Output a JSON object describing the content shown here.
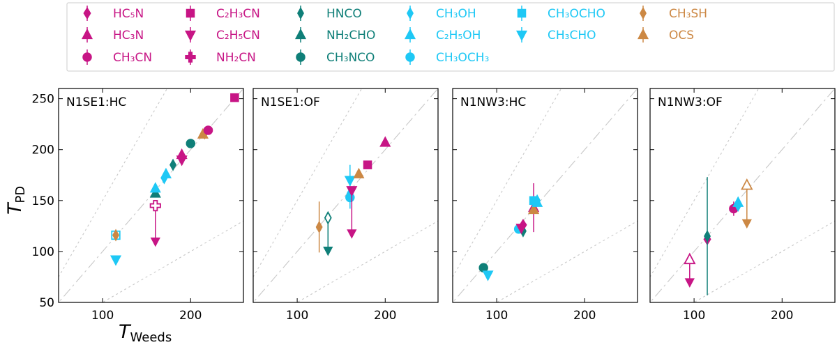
{
  "colors": {
    "HC": "#c71585",
    "N": "#0f7f78",
    "O": "#1ec8f5",
    "S": "#cc8844",
    "reference_line": "#c8c8c8"
  },
  "legend": [
    {
      "key": "HC5N",
      "label": "HC₅N",
      "group": "HC",
      "marker": "diamond"
    },
    {
      "key": "HC3N",
      "label": "HC₃N",
      "group": "HC",
      "marker": "triangle-up"
    },
    {
      "key": "CH3CN",
      "label": "CH₃CN",
      "group": "HC",
      "marker": "circle"
    },
    {
      "key": "C2H3CN",
      "label": "C₂H₃CN",
      "group": "HC",
      "marker": "square"
    },
    {
      "key": "C2H5CN",
      "label": "C₂H₅CN",
      "group": "HC",
      "marker": "triangle-down"
    },
    {
      "key": "NH2CN",
      "label": "NH₂CN",
      "group": "HC",
      "marker": "plus"
    },
    {
      "key": "HNCO",
      "label": "HNCO",
      "group": "N",
      "marker": "thin-diamond"
    },
    {
      "key": "NH2CHO",
      "label": "NH₂CHO",
      "group": "N",
      "marker": "triangle-up"
    },
    {
      "key": "CH3NCO",
      "label": "CH₃NCO",
      "group": "N",
      "marker": "circle"
    },
    {
      "key": "CH3OH",
      "label": "CH₃OH",
      "group": "O",
      "marker": "thin-diamond"
    },
    {
      "key": "C2H5OH",
      "label": "C₂H₅OH",
      "group": "O",
      "marker": "triangle-up"
    },
    {
      "key": "CH3OCH3",
      "label": "CH₃OCH₃",
      "group": "O",
      "marker": "circle"
    },
    {
      "key": "CH3OCHO",
      "label": "CH₃OCHO",
      "group": "O",
      "marker": "square"
    },
    {
      "key": "CH3CHO",
      "label": "CH₃CHO",
      "group": "O",
      "marker": "triangle-down"
    },
    {
      "key": "CH3SH",
      "label": "CH₃SH",
      "group": "S",
      "marker": "thin-diamond"
    },
    {
      "key": "OCS",
      "label": "OCS",
      "group": "S",
      "marker": "triangle-up"
    }
  ],
  "chart_data": {
    "type": "scatter",
    "xlabel_main": "T",
    "xlabel_sub": "Weeds",
    "ylabel_main": "T",
    "ylabel_sub": "PD",
    "xlim": [
      50,
      260
    ],
    "ylim": [
      50,
      260
    ],
    "xticks": [
      100,
      200
    ],
    "yticks": [
      50,
      100,
      150,
      200,
      250
    ],
    "reference_lines": [
      {
        "slope": 1.0,
        "style": "dashdot"
      },
      {
        "slope": 0.5,
        "style": "dotted"
      },
      {
        "slope": 1.5,
        "style": "dotted"
      }
    ],
    "panels": [
      {
        "title": "N1SE1:HC",
        "points": [
          {
            "mol": "CH3OCHO",
            "x": 115,
            "y": 116,
            "filled": false
          },
          {
            "mol": "CH3SH",
            "x": 115,
            "y": 116,
            "filled": true
          },
          {
            "mol": "CH3CHO",
            "x": 115,
            "y": 92,
            "filled": true
          },
          {
            "mol": "NH2CN",
            "x": 160,
            "y": 145,
            "filled": false,
            "upper_limit_to": 110
          },
          {
            "mol": "NH2CHO",
            "x": 160,
            "y": 157,
            "filled": true
          },
          {
            "mol": "C2H5OH",
            "x": 160,
            "y": 162,
            "filled": true
          },
          {
            "mol": "CH3OH",
            "x": 170,
            "y": 172,
            "filled": true
          },
          {
            "mol": "C2H5OH",
            "x": 172,
            "y": 176,
            "filled": true
          },
          {
            "mol": "HNCO",
            "x": 180,
            "y": 185,
            "filled": true
          },
          {
            "mol": "C2H5CN",
            "x": 190,
            "y": 190,
            "filled": true
          },
          {
            "mol": "HC3N",
            "x": 190,
            "y": 195,
            "filled": true
          },
          {
            "mol": "CH3NCO",
            "x": 200,
            "y": 206,
            "filled": true
          },
          {
            "mol": "OCS",
            "x": 214,
            "y": 215,
            "filled": true
          },
          {
            "mol": "CH3SH",
            "x": 216,
            "y": 216,
            "filled": true
          },
          {
            "mol": "CH3CN",
            "x": 220,
            "y": 219,
            "filled": true
          },
          {
            "mol": "C2H3CN",
            "x": 250,
            "y": 251,
            "filled": true
          }
        ]
      },
      {
        "title": "N1SE1:OF",
        "points": [
          {
            "mol": "CH3SH",
            "x": 125,
            "y": 124,
            "filled": true,
            "err": 25
          },
          {
            "mol": "HNCO",
            "x": 135,
            "y": 133,
            "filled": false,
            "upper_limit_to": 101
          },
          {
            "mol": "CH3OH",
            "x": 160,
            "y": 157,
            "filled": true,
            "err": 15
          },
          {
            "mol": "CH3OCH3",
            "x": 160,
            "y": 153,
            "filled": true
          },
          {
            "mol": "CH3CHO",
            "x": 160,
            "y": 170,
            "filled": true,
            "err": 15
          },
          {
            "mol": "C2H5CN",
            "x": 162,
            "y": 160,
            "filled": true,
            "upper_limit_to": 118
          },
          {
            "mol": "OCS",
            "x": 170,
            "y": 176,
            "filled": true
          },
          {
            "mol": "C2H3CN",
            "x": 180,
            "y": 185,
            "filled": true
          },
          {
            "mol": "HC3N",
            "x": 200,
            "y": 207,
            "filled": true
          }
        ]
      },
      {
        "title": "N1NW3:HC",
        "points": [
          {
            "mol": "CH3NCO",
            "x": 85,
            "y": 84,
            "filled": true
          },
          {
            "mol": "CH3CHO",
            "x": 90,
            "y": 77,
            "filled": true
          },
          {
            "mol": "CH3OCH3",
            "x": 125,
            "y": 122,
            "filled": true
          },
          {
            "mol": "HC5N",
            "x": 130,
            "y": 126,
            "filled": true
          },
          {
            "mol": "HNCO",
            "x": 130,
            "y": 120,
            "filled": true
          },
          {
            "mol": "C2H5CN",
            "x": 128,
            "y": 123,
            "filled": true
          },
          {
            "mol": "HC3N",
            "x": 142,
            "y": 143,
            "filled": true,
            "err": 24
          },
          {
            "mol": "OCS",
            "x": 142,
            "y": 141,
            "filled": true
          },
          {
            "mol": "CH3OCHO",
            "x": 142,
            "y": 150,
            "filled": true
          },
          {
            "mol": "CH3OH",
            "x": 146,
            "y": 150,
            "filled": true
          },
          {
            "mol": "C2H5OH",
            "x": 146,
            "y": 148,
            "filled": true
          }
        ]
      },
      {
        "title": "N1NW3:OF",
        "points": [
          {
            "mol": "HC3N",
            "x": 95,
            "y": 92,
            "filled": false,
            "upper_limit_to": 70
          },
          {
            "mol": "HC5N",
            "x": 115,
            "y": 112,
            "filled": true
          },
          {
            "mol": "HNCO",
            "x": 115,
            "y": 115,
            "filled": true,
            "err": 58
          },
          {
            "mol": "CH3CN",
            "x": 145,
            "y": 142,
            "filled": true,
            "err": 7
          },
          {
            "mol": "CH3OH",
            "x": 150,
            "y": 145,
            "filled": true
          },
          {
            "mol": "C2H5OH",
            "x": 150,
            "y": 148,
            "filled": true
          },
          {
            "mol": "OCS",
            "x": 160,
            "y": 165,
            "filled": false,
            "upper_limit_to": 128
          }
        ]
      }
    ]
  }
}
